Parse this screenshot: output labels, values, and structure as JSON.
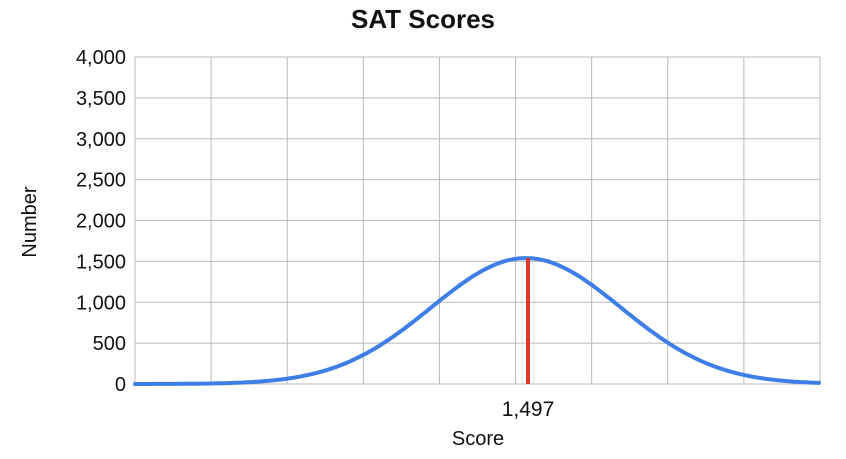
{
  "chart_data": {
    "type": "line",
    "title": "SAT Scores",
    "xlabel": "Score",
    "ylabel": "Number",
    "ylim": [
      0,
      4000
    ],
    "y_ticks": [
      0,
      500,
      1000,
      1500,
      2000,
      2500,
      3000,
      3500,
      4000
    ],
    "y_tick_labels": [
      "0",
      "500",
      "1,000",
      "1,500",
      "2,000",
      "2,500",
      "3,000",
      "3,500",
      "4,000"
    ],
    "grid": true,
    "series": [
      {
        "color": "#3d7fe6",
        "curve": "normal",
        "peak_value": 1540,
        "mean": 1497
      }
    ],
    "marker": {
      "label": "1,497",
      "value": 1497,
      "color": "#e0392b"
    }
  }
}
